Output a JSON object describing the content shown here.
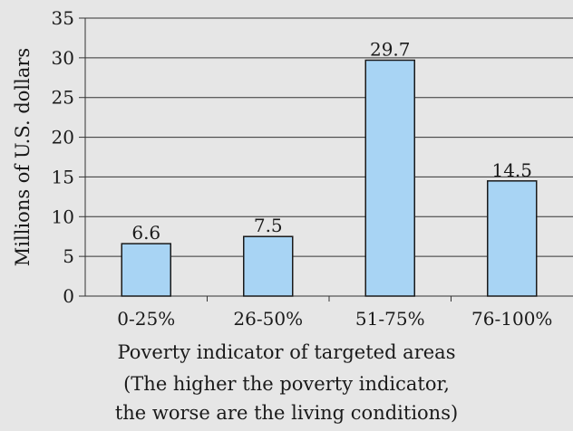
{
  "chart_data": {
    "type": "bar",
    "categories": [
      "0-25%",
      "26-50%",
      "51-75%",
      "76-100%"
    ],
    "values": [
      6.6,
      7.5,
      29.7,
      14.5
    ],
    "data_labels": [
      "6.6",
      "7.5",
      "29.7",
      "14.5"
    ],
    "ylabel": "Millions of U.S. dollars",
    "xlabel_lines": [
      "Poverty indicator of targeted areas",
      "(The higher the poverty indicator,",
      "the worse are the living conditions)"
    ],
    "ylim": [
      0,
      35
    ],
    "yticks": [
      0,
      5,
      10,
      15,
      20,
      25,
      30,
      35
    ],
    "grid": true,
    "legend": "none",
    "colors": {
      "bar_fill": "#a8d4f4",
      "bar_stroke": "#1a1a1a",
      "grid": "#333333",
      "background": "#e6e6e6",
      "text": "#1a1a1a"
    }
  }
}
